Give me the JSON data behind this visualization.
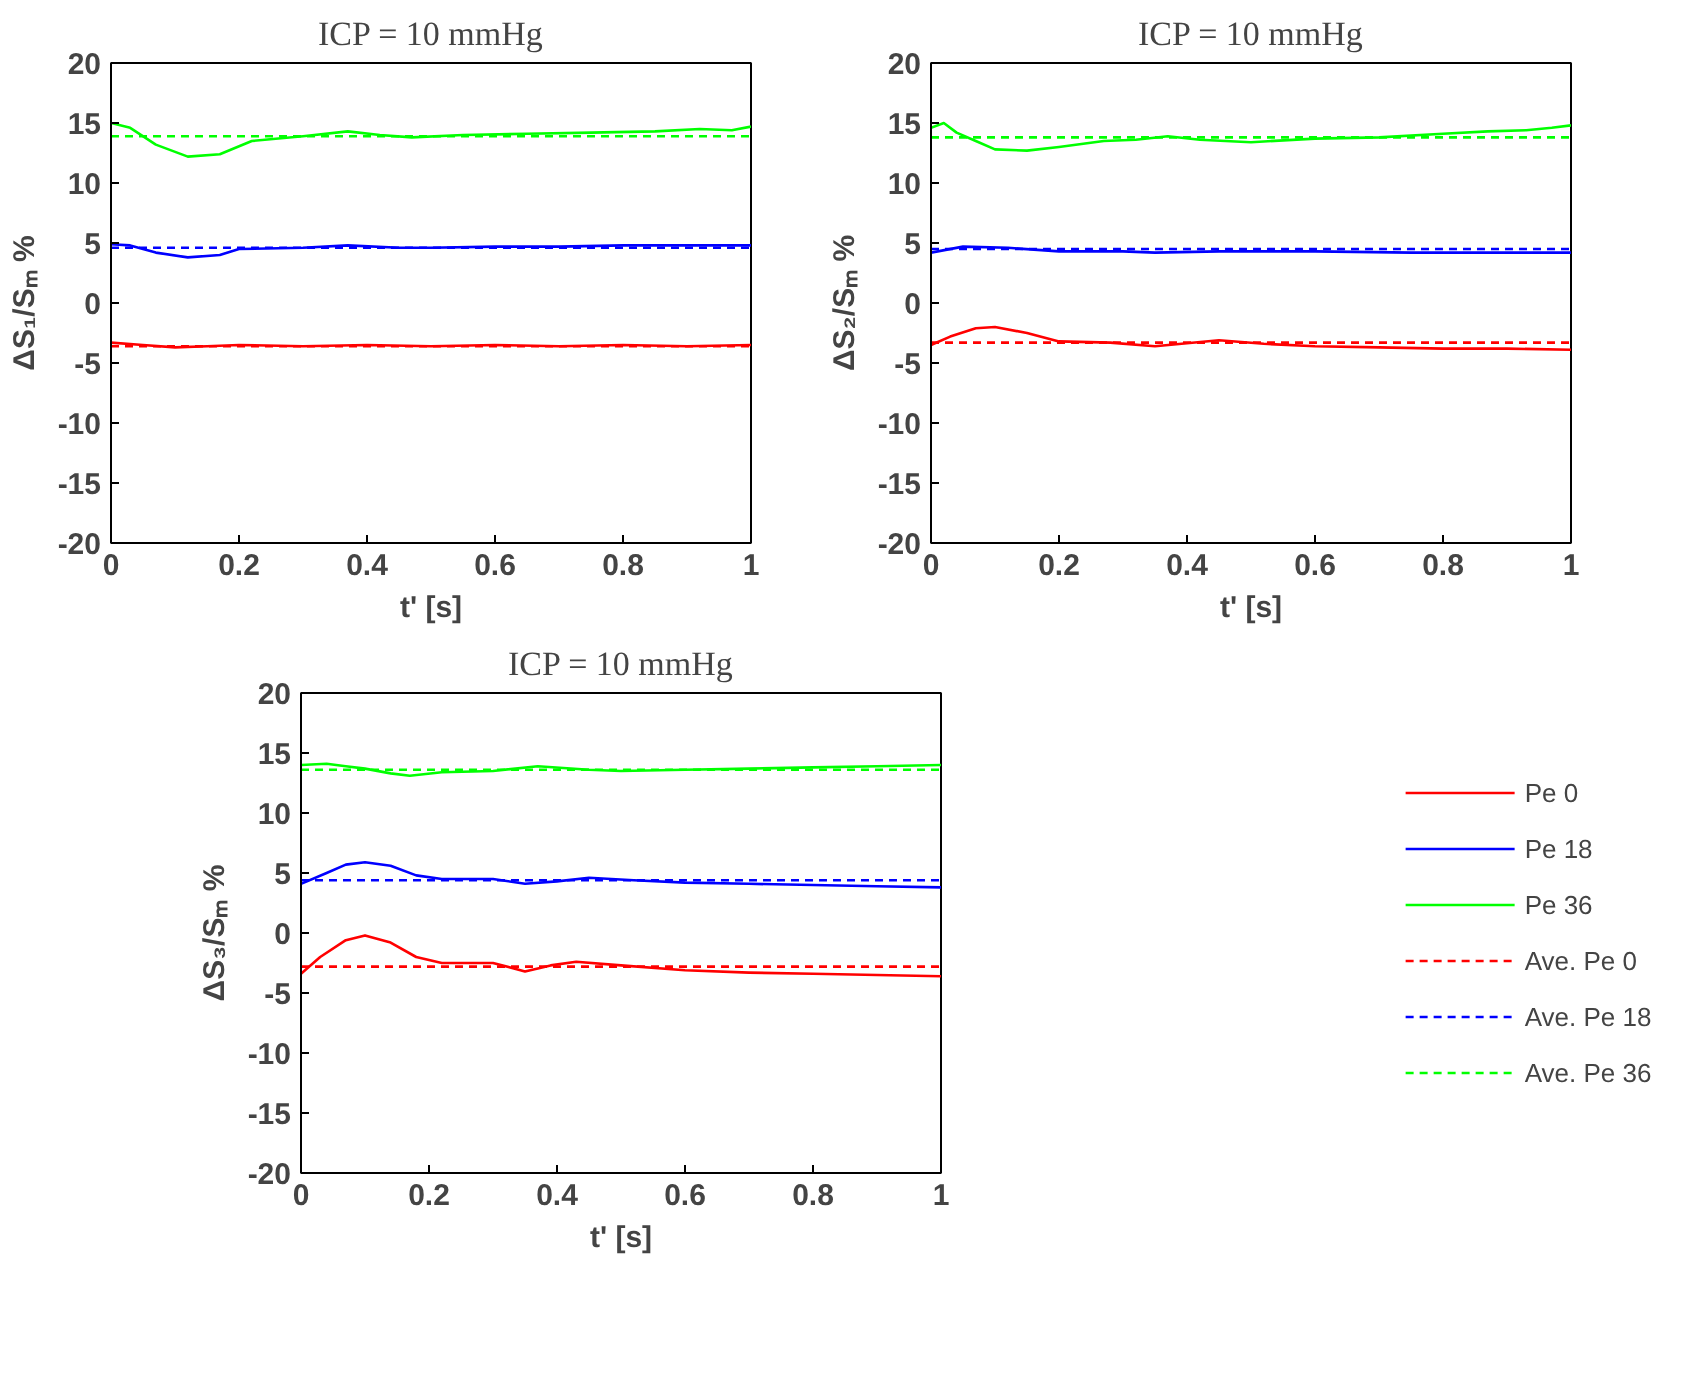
{
  "chart_data": [
    {
      "type": "line",
      "title": "ICP = 10 mmHg",
      "xlabel": "t' [s]",
      "ylabel": "ΔS₁/Sₘ %",
      "xlim": [
        0,
        1
      ],
      "ylim": [
        -20,
        20
      ],
      "xticks": [
        0,
        0.2,
        0.4,
        0.6,
        0.8,
        1
      ],
      "yticks": [
        -20,
        -15,
        -10,
        -5,
        0,
        5,
        10,
        15,
        20
      ],
      "grid": false,
      "series": [
        {
          "color": "#ff0000",
          "x": [
            0,
            0.05,
            0.1,
            0.15,
            0.2,
            0.3,
            0.4,
            0.5,
            0.6,
            0.7,
            0.8,
            0.9,
            1
          ],
          "values": [
            -3.3,
            -3.5,
            -3.7,
            -3.6,
            -3.5,
            -3.6,
            -3.5,
            -3.6,
            -3.5,
            -3.6,
            -3.5,
            -3.6,
            -3.5
          ]
        },
        {
          "color": "#0000ff",
          "x": [
            0,
            0.03,
            0.07,
            0.12,
            0.17,
            0.2,
            0.3,
            0.37,
            0.45,
            0.5,
            0.6,
            0.7,
            0.8,
            0.9,
            1
          ],
          "values": [
            4.9,
            4.8,
            4.2,
            3.8,
            4.0,
            4.5,
            4.6,
            4.8,
            4.6,
            4.6,
            4.7,
            4.7,
            4.8,
            4.8,
            4.8
          ]
        },
        {
          "color": "#00ff00",
          "x": [
            0,
            0.03,
            0.07,
            0.12,
            0.17,
            0.22,
            0.3,
            0.37,
            0.42,
            0.47,
            0.55,
            0.65,
            0.75,
            0.85,
            0.92,
            0.97,
            1
          ],
          "values": [
            15.0,
            14.6,
            13.2,
            12.2,
            12.4,
            13.5,
            13.9,
            14.3,
            14.0,
            13.8,
            14.0,
            14.1,
            14.2,
            14.3,
            14.5,
            14.4,
            14.7
          ]
        },
        {
          "color": "#ff0000",
          "line_style": "dashed",
          "x": [
            0,
            1
          ],
          "values": [
            -3.6,
            -3.6
          ]
        },
        {
          "color": "#0000ff",
          "line_style": "dashed",
          "x": [
            0,
            1
          ],
          "values": [
            4.6,
            4.6
          ]
        },
        {
          "color": "#00ff00",
          "line_style": "dashed",
          "x": [
            0,
            1
          ],
          "values": [
            13.9,
            13.9
          ]
        }
      ]
    },
    {
      "type": "line",
      "title": "ICP = 10 mmHg",
      "xlabel": "t' [s]",
      "ylabel": "ΔS₂/Sₘ %",
      "xlim": [
        0,
        1
      ],
      "ylim": [
        -20,
        20
      ],
      "xticks": [
        0,
        0.2,
        0.4,
        0.6,
        0.8,
        1
      ],
      "yticks": [
        -20,
        -15,
        -10,
        -5,
        0,
        5,
        10,
        15,
        20
      ],
      "grid": false,
      "series": [
        {
          "color": "#ff0000",
          "x": [
            0,
            0.03,
            0.07,
            0.1,
            0.15,
            0.2,
            0.28,
            0.35,
            0.45,
            0.52,
            0.6,
            0.7,
            0.8,
            0.9,
            1
          ],
          "values": [
            -3.5,
            -2.8,
            -2.1,
            -2.0,
            -2.5,
            -3.2,
            -3.3,
            -3.6,
            -3.1,
            -3.4,
            -3.6,
            -3.7,
            -3.8,
            -3.8,
            -3.9
          ]
        },
        {
          "color": "#0000ff",
          "x": [
            0,
            0.05,
            0.12,
            0.2,
            0.3,
            0.35,
            0.45,
            0.6,
            0.75,
            0.9,
            1
          ],
          "values": [
            4.2,
            4.7,
            4.6,
            4.3,
            4.3,
            4.2,
            4.3,
            4.3,
            4.2,
            4.2,
            4.2
          ]
        },
        {
          "color": "#00ff00",
          "x": [
            0,
            0.02,
            0.04,
            0.07,
            0.1,
            0.15,
            0.2,
            0.27,
            0.32,
            0.37,
            0.42,
            0.5,
            0.6,
            0.7,
            0.8,
            0.87,
            0.93,
            0.97,
            1
          ],
          "values": [
            14.6,
            15.0,
            14.2,
            13.5,
            12.8,
            12.7,
            13.0,
            13.5,
            13.6,
            13.9,
            13.6,
            13.4,
            13.7,
            13.8,
            14.1,
            14.3,
            14.4,
            14.6,
            14.8
          ]
        },
        {
          "color": "#ff0000",
          "line_style": "dashed",
          "x": [
            0,
            1
          ],
          "values": [
            -3.3,
            -3.3
          ]
        },
        {
          "color": "#0000ff",
          "line_style": "dashed",
          "x": [
            0,
            1
          ],
          "values": [
            4.5,
            4.5
          ]
        },
        {
          "color": "#00ff00",
          "line_style": "dashed",
          "x": [
            0,
            1
          ],
          "values": [
            13.8,
            13.8
          ]
        }
      ]
    },
    {
      "type": "line",
      "title": "ICP = 10 mmHg",
      "xlabel": "t' [s]",
      "ylabel": "ΔS₃/Sₘ %",
      "xlim": [
        0,
        1
      ],
      "ylim": [
        -20,
        20
      ],
      "xticks": [
        0,
        0.2,
        0.4,
        0.6,
        0.8,
        1
      ],
      "yticks": [
        -20,
        -15,
        -10,
        -5,
        0,
        5,
        10,
        15,
        20
      ],
      "grid": false,
      "legend": "right",
      "series": [
        {
          "name": "Pe 0",
          "color": "#ff0000",
          "x": [
            0,
            0.03,
            0.07,
            0.1,
            0.14,
            0.18,
            0.22,
            0.3,
            0.35,
            0.39,
            0.43,
            0.5,
            0.6,
            0.7,
            0.8,
            0.9,
            1
          ],
          "values": [
            -3.4,
            -2.0,
            -0.6,
            -0.2,
            -0.8,
            -2.0,
            -2.5,
            -2.5,
            -3.2,
            -2.7,
            -2.4,
            -2.7,
            -3.1,
            -3.3,
            -3.4,
            -3.5,
            -3.6
          ]
        },
        {
          "name": "Pe 18",
          "color": "#0000ff",
          "x": [
            0,
            0.04,
            0.07,
            0.1,
            0.14,
            0.18,
            0.22,
            0.3,
            0.35,
            0.4,
            0.45,
            0.52,
            0.6,
            0.7,
            0.8,
            0.9,
            1
          ],
          "values": [
            4.1,
            5.0,
            5.7,
            5.9,
            5.6,
            4.8,
            4.5,
            4.5,
            4.1,
            4.3,
            4.6,
            4.4,
            4.2,
            4.1,
            4.0,
            3.9,
            3.8
          ]
        },
        {
          "name": "Pe 36",
          "color": "#00ff00",
          "x": [
            0,
            0.04,
            0.07,
            0.1,
            0.14,
            0.17,
            0.22,
            0.3,
            0.37,
            0.45,
            0.5,
            0.6,
            0.7,
            0.8,
            0.9,
            1
          ],
          "values": [
            14.0,
            14.1,
            13.9,
            13.7,
            13.3,
            13.1,
            13.4,
            13.5,
            13.9,
            13.6,
            13.5,
            13.6,
            13.7,
            13.8,
            13.9,
            14.0
          ]
        },
        {
          "name": "Ave. Pe 0",
          "color": "#ff0000",
          "line_style": "dashed",
          "x": [
            0,
            1
          ],
          "values": [
            -2.8,
            -2.8
          ]
        },
        {
          "name": "Ave. Pe 18",
          "color": "#0000ff",
          "line_style": "dashed",
          "x": [
            0,
            1
          ],
          "values": [
            4.4,
            4.4
          ]
        },
        {
          "name": "Ave. Pe 36",
          "color": "#00ff00",
          "line_style": "dashed",
          "x": [
            0,
            1
          ],
          "values": [
            13.6,
            13.6
          ]
        }
      ]
    }
  ]
}
